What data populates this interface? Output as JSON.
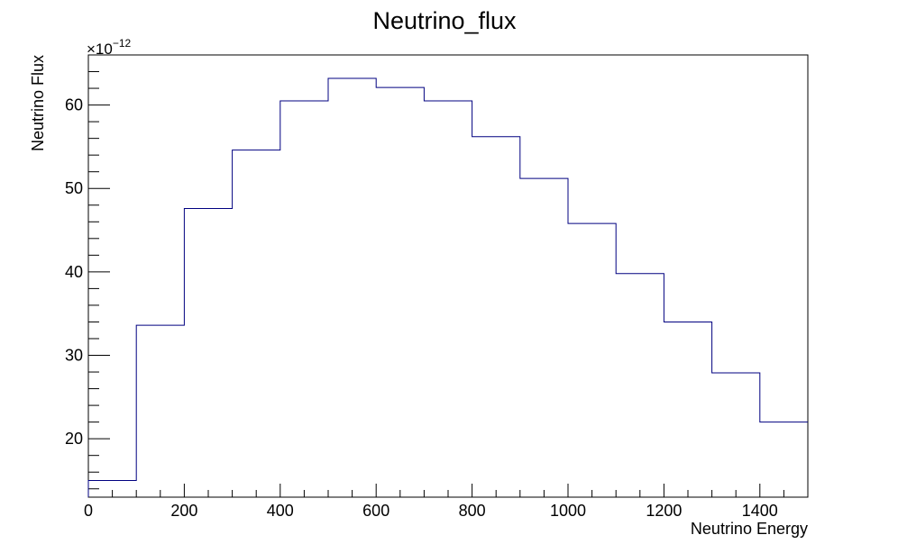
{
  "chart_data": {
    "type": "histogram",
    "title": "Neutrino_flux",
    "xlabel": "Neutrino Energy",
    "ylabel": "Neutrino Flux",
    "y_multiplier_base": "×10",
    "y_multiplier_exp": "−12",
    "xlim": [
      0,
      1500
    ],
    "ylim": [
      13,
      66
    ],
    "x_ticks": [
      0,
      200,
      400,
      600,
      800,
      1000,
      1200,
      1400
    ],
    "y_ticks": [
      20,
      30,
      40,
      50,
      60
    ],
    "bin_edges": [
      0,
      100,
      200,
      300,
      400,
      500,
      600,
      700,
      800,
      900,
      1000,
      1100,
      1200,
      1300,
      1400,
      1500
    ],
    "values": [
      15.0,
      33.6,
      47.6,
      54.6,
      60.5,
      63.2,
      62.1,
      60.5,
      56.2,
      51.2,
      45.8,
      39.8,
      34.0,
      27.9,
      22.0
    ],
    "line_color": "#000080",
    "grid": false,
    "legend": "none"
  }
}
